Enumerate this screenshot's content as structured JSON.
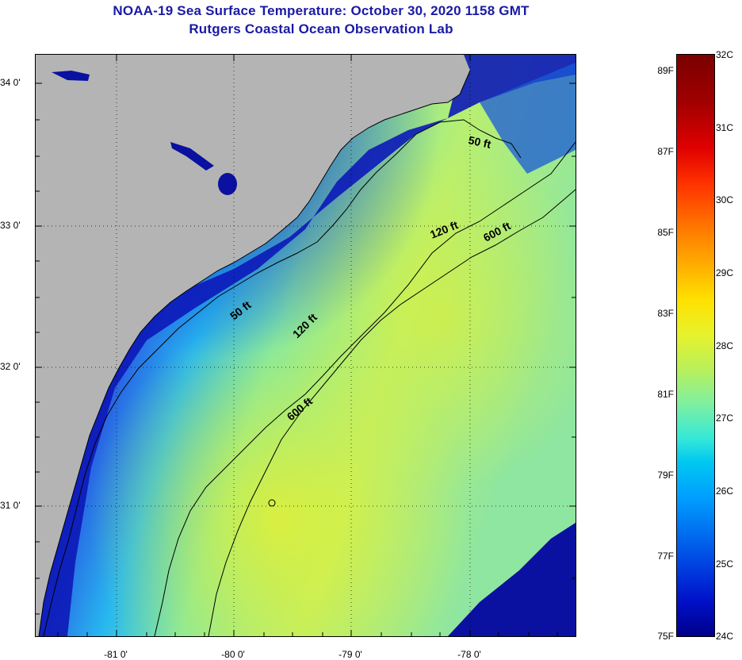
{
  "title": {
    "line1": "NOAA-19 Sea Surface Temperature:  October 30, 2020 1158 GMT",
    "line2": "Rutgers Coastal Ocean Observation Lab"
  },
  "map": {
    "lat_labels": [
      "34 0'",
      "33 0'",
      "32 0'",
      "31 0'"
    ],
    "lon_labels": [
      "-81 0'",
      "-80 0'",
      "-79 0'",
      "-78 0'"
    ],
    "contours": {
      "c50_upper": "50 ft",
      "c120_upper": "120 ft",
      "c600_upper": "600 ft",
      "c50_lower": "50 ft",
      "c120_lower": "120 ft",
      "c600_lower": "600 ft"
    },
    "colors": {
      "land": "#b4b4b4",
      "deep_blue": "#0a10a0",
      "grid": "#000000"
    }
  },
  "colorbar": {
    "fahrenheit": [
      "89F",
      "87F",
      "85F",
      "83F",
      "81F",
      "79F",
      "77F",
      "75F"
    ],
    "celsius": [
      "32C",
      "31C",
      "30C",
      "29C",
      "28C",
      "27C",
      "26C",
      "25C",
      "24C"
    ]
  }
}
